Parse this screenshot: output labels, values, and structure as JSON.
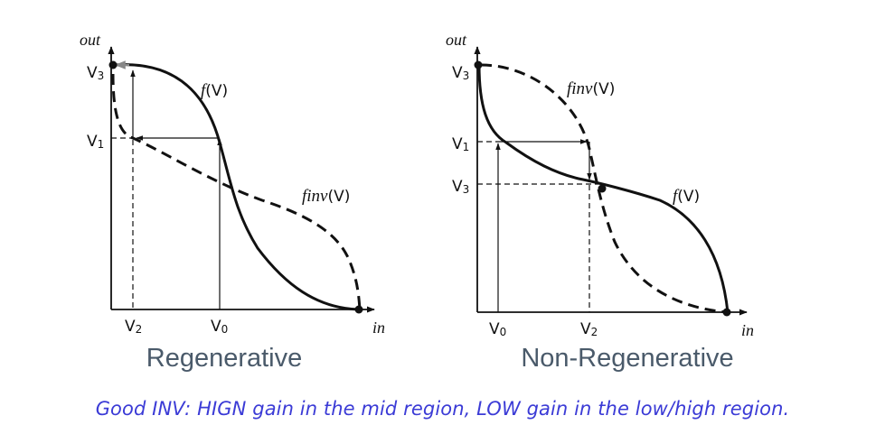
{
  "diagrams": [
    {
      "id": "regenerative",
      "title": "Regenerative",
      "y_axis_label": "out",
      "x_axis_label": "in",
      "y_ticks": [
        {
          "base": "V",
          "sub": "3"
        },
        {
          "base": "V",
          "sub": "1"
        }
      ],
      "x_ticks": [
        {
          "base": "V",
          "sub": "2"
        },
        {
          "base": "V",
          "sub": "0"
        }
      ],
      "curve_f_label": {
        "prefix": "f",
        "suffix": "(V)"
      },
      "curve_inv_label": {
        "prefix": "finv",
        "suffix": "(V)"
      }
    },
    {
      "id": "non-regenerative",
      "title": "Non-Regenerative",
      "y_axis_label": "out",
      "x_axis_label": "in",
      "y_ticks": [
        {
          "base": "V",
          "sub": "3"
        },
        {
          "base": "V",
          "sub": "1"
        },
        {
          "base": "V",
          "sub": "3"
        }
      ],
      "x_ticks": [
        {
          "base": "V",
          "sub": "0"
        },
        {
          "base": "V",
          "sub": "2"
        }
      ],
      "curve_f_label": {
        "prefix": "f",
        "suffix": "(V)"
      },
      "curve_inv_label": {
        "prefix": "finv",
        "suffix": "(V)"
      }
    }
  ],
  "caption": "Good INV: HIGN gain in the mid region, LOW gain in the low/high region.",
  "colors": {
    "ink": "#111111",
    "title": "#4a5a6a",
    "caption": "#3b3bd6",
    "gray_arrow": "#888888"
  }
}
